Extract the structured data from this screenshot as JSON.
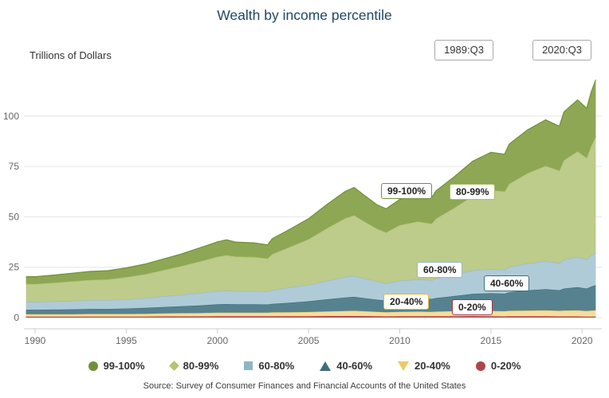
{
  "title": "Wealth by income percentile",
  "y_axis_title": "Trillions of Dollars",
  "range_buttons": {
    "start": "1989:Q3",
    "end": "2020:Q3"
  },
  "source": "Source: Survey of Consumer Finances and Financial Accounts of the United States",
  "colors": {
    "title": "#1d4866",
    "axis_text": "#666666",
    "gridline": "#e6e6e6",
    "axis_line": "#cccccc"
  },
  "chart_data": {
    "type": "area",
    "stacked": true,
    "title": "Wealth by income percentile",
    "ylabel": "Trillions of Dollars",
    "xlabel": "",
    "grid": true,
    "legend_position": "bottom",
    "xlim": [
      1989.5,
      2020.75
    ],
    "ylim": [
      -5.5,
      122
    ],
    "x_ticks": [
      "1990",
      "1995",
      "2000",
      "2005",
      "2010",
      "2015",
      "2020"
    ],
    "x_tick_values": [
      1990,
      1995,
      2000,
      2005,
      2010,
      2015,
      2020
    ],
    "y_ticks": [
      0,
      25,
      50,
      75,
      100
    ],
    "x": [
      1989.5,
      1990,
      1991,
      1992,
      1993,
      1994,
      1995,
      1996,
      1997,
      1998,
      1999,
      2000,
      2000.5,
      2001,
      2002,
      2002.75,
      2003,
      2004,
      2005,
      2006,
      2007,
      2007.5,
      2008,
      2008.75,
      2009.25,
      2010,
      2011,
      2011.75,
      2012,
      2013,
      2014,
      2015,
      2015.75,
      2016,
      2017,
      2018,
      2018.75,
      2019,
      2019.75,
      2020.25,
      2020.5,
      2020.75
    ],
    "series": [
      {
        "name": "0-20%",
        "fill": "#bc535a",
        "line": "#a63b42",
        "values": [
          0.5,
          0.5,
          0.5,
          0.5,
          0.5,
          0.5,
          0.5,
          0.5,
          0.6,
          0.6,
          0.6,
          0.7,
          0.7,
          0.7,
          0.7,
          0.7,
          0.7,
          0.7,
          0.7,
          0.8,
          0.8,
          0.8,
          0.8,
          0.7,
          0.6,
          0.7,
          0.7,
          0.7,
          0.7,
          0.7,
          0.8,
          0.7,
          0.6,
          0.7,
          0.7,
          0.7,
          0.6,
          0.6,
          0.6,
          0.5,
          0.5,
          0.5
        ]
      },
      {
        "name": "20-40%",
        "fill": "#f6dd9b",
        "line": "#ecc75f",
        "values": [
          1.2,
          1.2,
          1.2,
          1.2,
          1.3,
          1.3,
          1.3,
          1.4,
          1.5,
          1.6,
          1.7,
          1.8,
          1.8,
          1.8,
          1.8,
          1.8,
          1.9,
          2.0,
          2.1,
          2.3,
          2.5,
          2.6,
          2.4,
          2.2,
          2.1,
          2.2,
          2.3,
          2.2,
          2.3,
          2.5,
          2.7,
          2.6,
          2.6,
          2.7,
          2.8,
          2.9,
          2.8,
          2.9,
          3.0,
          2.8,
          3.0,
          3.1
        ]
      },
      {
        "name": "40-60%",
        "fill": "#56828f",
        "line": "#3e6e7c",
        "values": [
          2.2,
          2.2,
          2.3,
          2.4,
          2.5,
          2.5,
          2.7,
          2.9,
          3.1,
          3.4,
          3.7,
          4.1,
          4.2,
          4.1,
          4.1,
          4.0,
          4.2,
          4.7,
          5.3,
          6.0,
          6.7,
          6.9,
          6.5,
          6.0,
          5.8,
          6.3,
          6.5,
          6.4,
          6.7,
          7.5,
          8.3,
          8.8,
          8.7,
          9.2,
          10.0,
          10.5,
          10.2,
          10.9,
          11.5,
          11.1,
          11.9,
          12.5
        ]
      },
      {
        "name": "60-80%",
        "fill": "#afcbd8",
        "line": "#97bac9",
        "values": [
          3.9,
          3.9,
          4.0,
          4.2,
          4.3,
          4.4,
          4.5,
          4.8,
          5.3,
          5.7,
          6.2,
          6.5,
          6.7,
          6.5,
          6.5,
          6.4,
          6.8,
          7.6,
          8.0,
          9.1,
          10.1,
          10.4,
          9.8,
          9.0,
          8.4,
          9.1,
          9.4,
          9.2,
          9.7,
          10.6,
          11.6,
          12.0,
          11.8,
          12.5,
          13.3,
          13.9,
          13.4,
          14.3,
          15.0,
          14.4,
          15.4,
          15.9
        ]
      },
      {
        "name": "80-99%",
        "fill": "#bdcb8b",
        "line": "#a9bd6a",
        "values": [
          8.9,
          8.9,
          9.3,
          9.7,
          10.1,
          10.3,
          11.1,
          11.9,
          13.0,
          14.2,
          15.6,
          17.1,
          17.6,
          17.2,
          17.0,
          16.5,
          17.9,
          20.2,
          22.8,
          26.1,
          29.2,
          30.1,
          28.5,
          26.2,
          25.4,
          27.6,
          28.8,
          28.1,
          29.8,
          33.2,
          36.9,
          39.2,
          38.9,
          41.3,
          44.8,
          47.3,
          45.9,
          49.4,
          52.4,
          50.5,
          54.4,
          57.8
        ]
      },
      {
        "name": "99-100%",
        "fill": "#8ea754",
        "line": "#6f9138",
        "values": [
          3.6,
          3.6,
          3.8,
          4.0,
          4.2,
          4.3,
          4.6,
          5.0,
          5.5,
          6.0,
          6.7,
          7.4,
          7.6,
          7.2,
          7.0,
          6.7,
          7.6,
          8.8,
          10.2,
          11.8,
          13.3,
          13.8,
          13.0,
          11.9,
          11.7,
          12.7,
          13.3,
          13.0,
          13.8,
          15.5,
          17.3,
          18.7,
          18.5,
          19.7,
          21.5,
          22.8,
          22.1,
          23.9,
          25.5,
          24.6,
          26.8,
          28.2
        ]
      }
    ],
    "series_labels": [
      {
        "text": "99-100%",
        "color": "#6f9138"
      },
      {
        "text": "80-99%",
        "color": "#a9bd6a"
      },
      {
        "text": "60-80%",
        "color": "#97bac9"
      },
      {
        "text": "40-60%",
        "color": "#3e6e7c"
      },
      {
        "text": "20-40%",
        "color": "#e0b73e"
      },
      {
        "text": "0-20%",
        "color": "#a63b42"
      }
    ]
  },
  "legend": [
    {
      "label": "99-100%",
      "marker": "circle",
      "color": "#6f9138"
    },
    {
      "label": "80-99%",
      "marker": "diamond",
      "color": "#b3c573"
    },
    {
      "label": "60-80%",
      "marker": "square",
      "color": "#8fb6c6"
    },
    {
      "label": "40-60%",
      "marker": "triangle",
      "color": "#3e6e7c"
    },
    {
      "label": "20-40%",
      "marker": "triangle-down",
      "color": "#eecb62"
    },
    {
      "label": "0-20%",
      "marker": "circle",
      "color": "#ae444c"
    }
  ]
}
